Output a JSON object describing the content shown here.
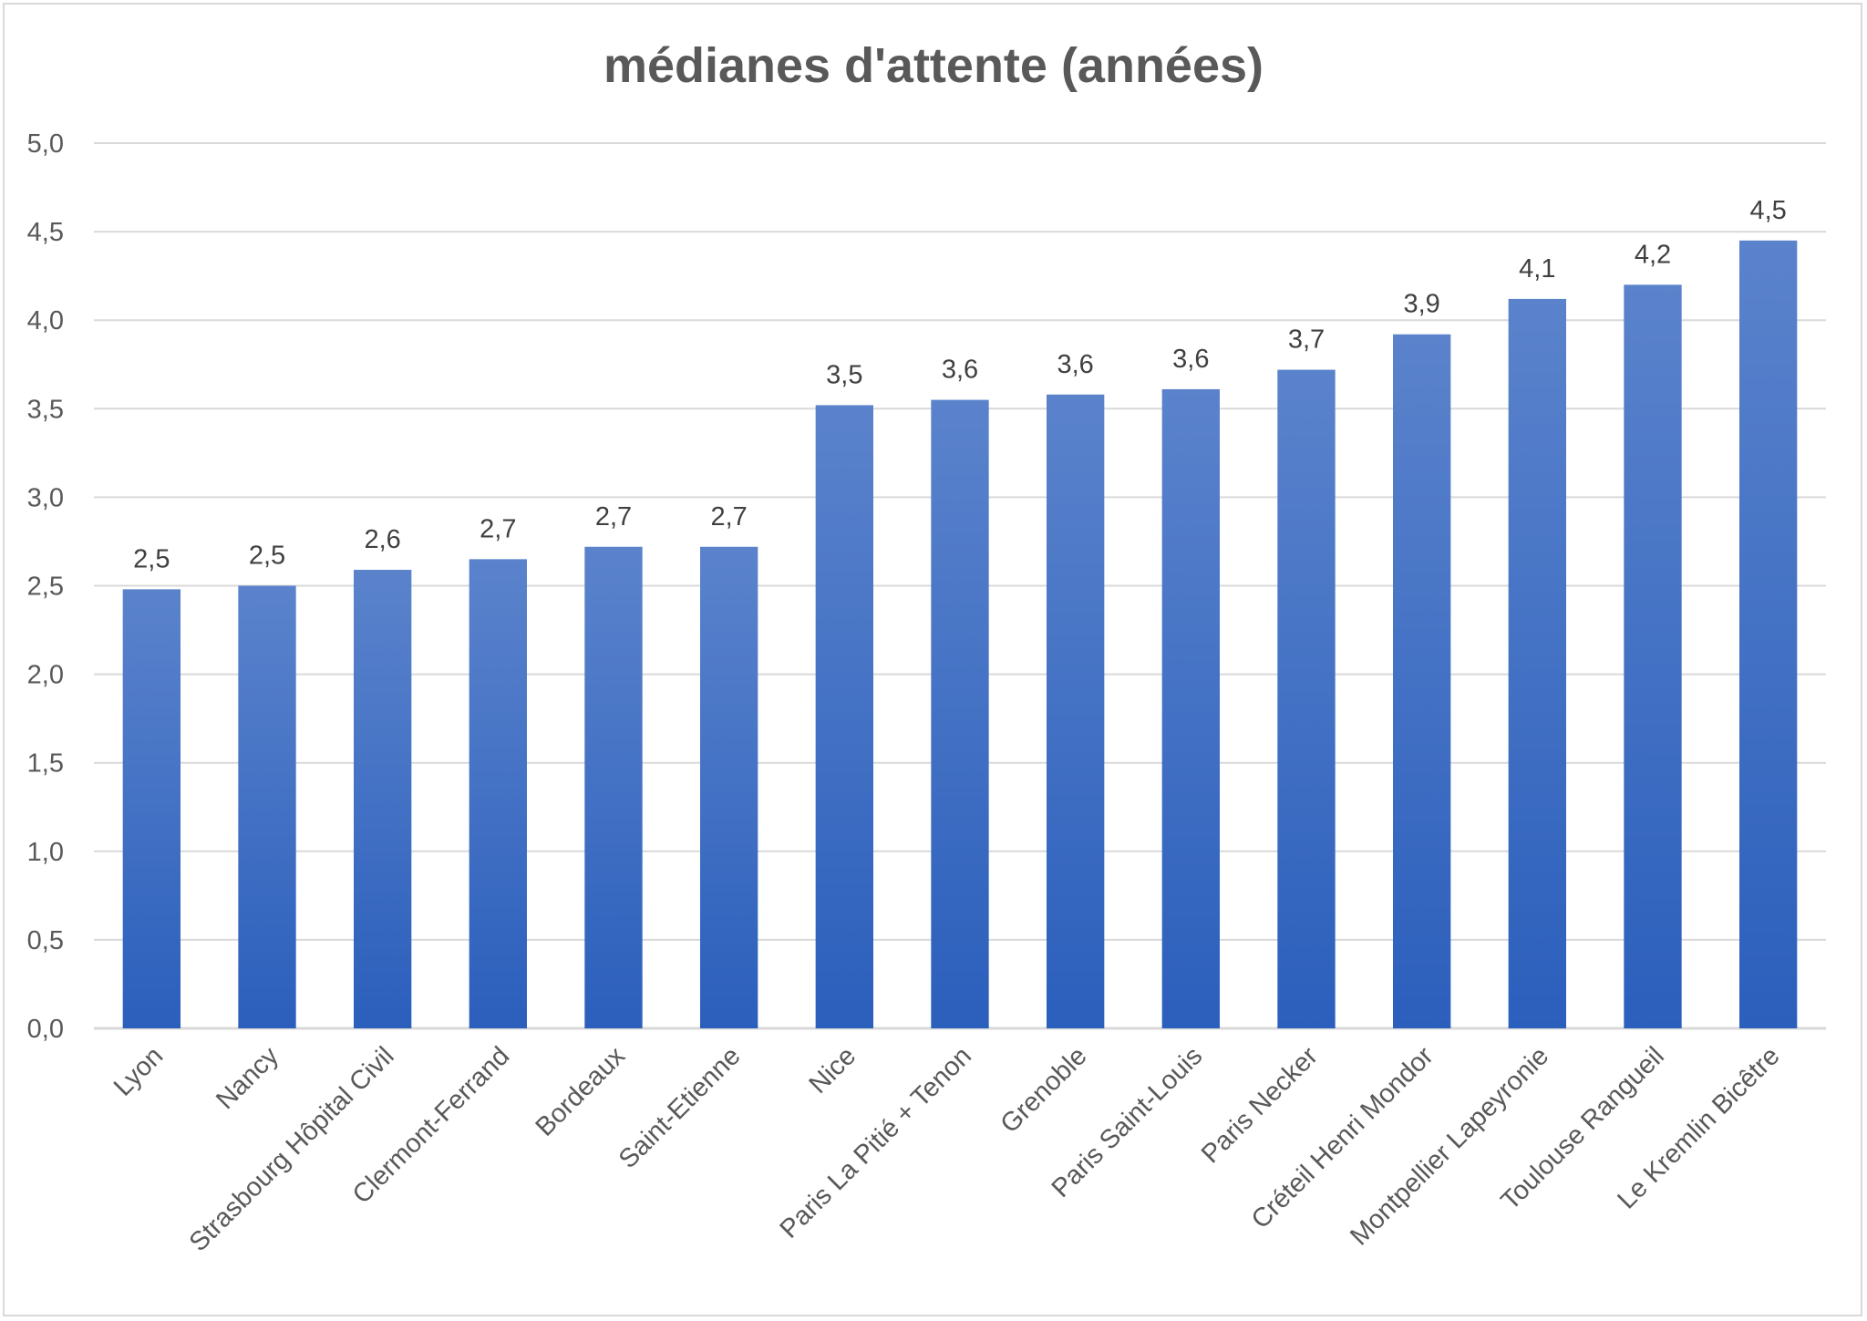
{
  "chart_data": {
    "type": "bar",
    "title": "médianes d'attente (années)",
    "xlabel": "",
    "ylabel": "",
    "categories": [
      "Lyon",
      "Nancy",
      "Strasbourg Hôpital Civil",
      "Clermont-Ferrand",
      "Bordeaux",
      "Saint-Etienne",
      "Nice",
      "Paris La Pitié + Tenon",
      "Grenoble",
      "Paris Saint-Louis",
      "Paris Necker",
      "Créteil Henri Mondor",
      "Montpellier Lapeyronie",
      "Toulouse Rangueil",
      "Le Kremlin Bicêtre"
    ],
    "values": [
      2.48,
      2.5,
      2.59,
      2.65,
      2.72,
      2.72,
      3.52,
      3.55,
      3.58,
      3.61,
      3.72,
      3.92,
      4.12,
      4.2,
      4.45
    ],
    "data_labels": [
      "2,5",
      "2,5",
      "2,6",
      "2,7",
      "2,7",
      "2,7",
      "3,5",
      "3,6",
      "3,6",
      "3,6",
      "3,7",
      "3,9",
      "4,1",
      "4,2",
      "4,5"
    ],
    "ylim": [
      0,
      5
    ],
    "yticks": [
      0,
      0.5,
      1,
      1.5,
      2,
      2.5,
      3,
      3.5,
      4,
      4.5,
      5
    ],
    "ytick_labels": [
      "0,0",
      "0,5",
      "1,0",
      "1,5",
      "2,0",
      "2,5",
      "3,0",
      "3,5",
      "4,0",
      "4,5",
      "5,0"
    ],
    "grid": true,
    "legend": "none",
    "bar_color_top": "#5b83cc",
    "bar_color_bottom": "#2b5fbc",
    "gridline_color": "#d9d9d9"
  }
}
